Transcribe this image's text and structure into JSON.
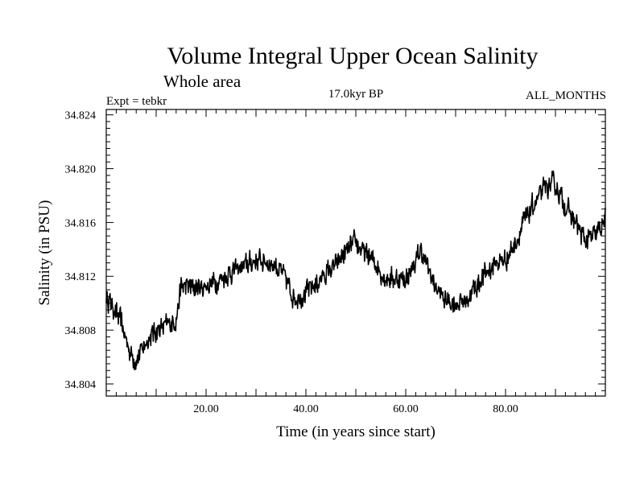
{
  "chart_data": {
    "type": "line",
    "title": "Volume Integral Upper Ocean Salinity",
    "subtitle": "Whole area",
    "annotations": {
      "left": "Expt = tebkr",
      "center": "17.0kyr BP",
      "right": "ALL_MONTHS"
    },
    "xlabel": "Time (in years since start)",
    "ylabel": "Salinity (in PSU)",
    "xlim": [
      0,
      100
    ],
    "ylim": [
      34.8031,
      34.8244
    ],
    "x_ticks": [
      {
        "value": 20,
        "label": "20.00"
      },
      {
        "value": 40,
        "label": "40.00"
      },
      {
        "value": 60,
        "label": "60.00"
      },
      {
        "value": 80,
        "label": "80.00"
      }
    ],
    "y_ticks": [
      {
        "value": 34.804,
        "label": "34.804"
      },
      {
        "value": 34.808,
        "label": "34.808"
      },
      {
        "value": 34.812,
        "label": "34.812"
      },
      {
        "value": 34.816,
        "label": "34.816"
      },
      {
        "value": 34.82,
        "label": "34.820"
      },
      {
        "value": 34.824,
        "label": "34.824"
      }
    ],
    "grid": false,
    "series": [
      {
        "name": "Salinity",
        "noise_amplitude": 0.0011,
        "trend": {
          "x": [
            0,
            1,
            2,
            3,
            4,
            5,
            6,
            7,
            8,
            10,
            12,
            14,
            15,
            16,
            18,
            20,
            22,
            24,
            26,
            28,
            30,
            32,
            34,
            36,
            37,
            38,
            40,
            42,
            44,
            46,
            48,
            50,
            52,
            54,
            55,
            56,
            58,
            60,
            62,
            63,
            64,
            66,
            67,
            68,
            70,
            72,
            74,
            76,
            78,
            80,
            82,
            84,
            86,
            88,
            90,
            92,
            94,
            96,
            98,
            100
          ],
          "y": [
            34.8105,
            34.81,
            34.8092,
            34.8086,
            34.8072,
            34.8062,
            34.8058,
            34.8064,
            34.8072,
            34.808,
            34.8083,
            34.8088,
            34.8112,
            34.8113,
            34.8111,
            34.8113,
            34.8116,
            34.8121,
            34.8125,
            34.8128,
            34.8132,
            34.8131,
            34.8128,
            34.8118,
            34.8108,
            34.8104,
            34.8108,
            34.8114,
            34.8122,
            34.8128,
            34.8138,
            34.8145,
            34.8136,
            34.813,
            34.8123,
            34.8119,
            34.8118,
            34.8118,
            34.813,
            34.814,
            34.813,
            34.8112,
            34.8106,
            34.8102,
            34.81,
            34.8102,
            34.8112,
            34.8122,
            34.813,
            34.8132,
            34.8145,
            34.8162,
            34.8175,
            34.8186,
            34.8188,
            34.8172,
            34.816,
            34.8146,
            34.815,
            34.8162
          ]
        }
      }
    ]
  }
}
